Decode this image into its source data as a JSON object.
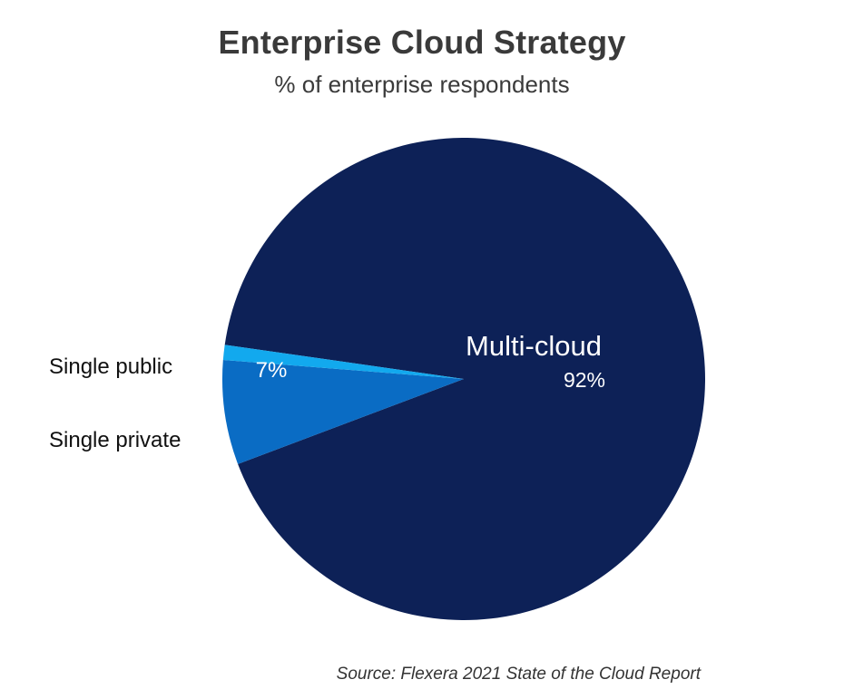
{
  "chart_data": {
    "type": "pie",
    "title": "Enterprise Cloud Strategy",
    "subtitle": "% of enterprise respondents",
    "slices": [
      {
        "label": "Multi-cloud",
        "value": 92,
        "value_label": "92%",
        "color": "#0d2157"
      },
      {
        "label": "Single public",
        "value": 7,
        "value_label": "7%",
        "color": "#0a6cc4"
      },
      {
        "label": "Single private",
        "value": 1,
        "value_label": "",
        "color": "#12a9ee"
      }
    ],
    "legend": "none",
    "source": "Source: Flexera 2021 State of the Cloud Report"
  }
}
